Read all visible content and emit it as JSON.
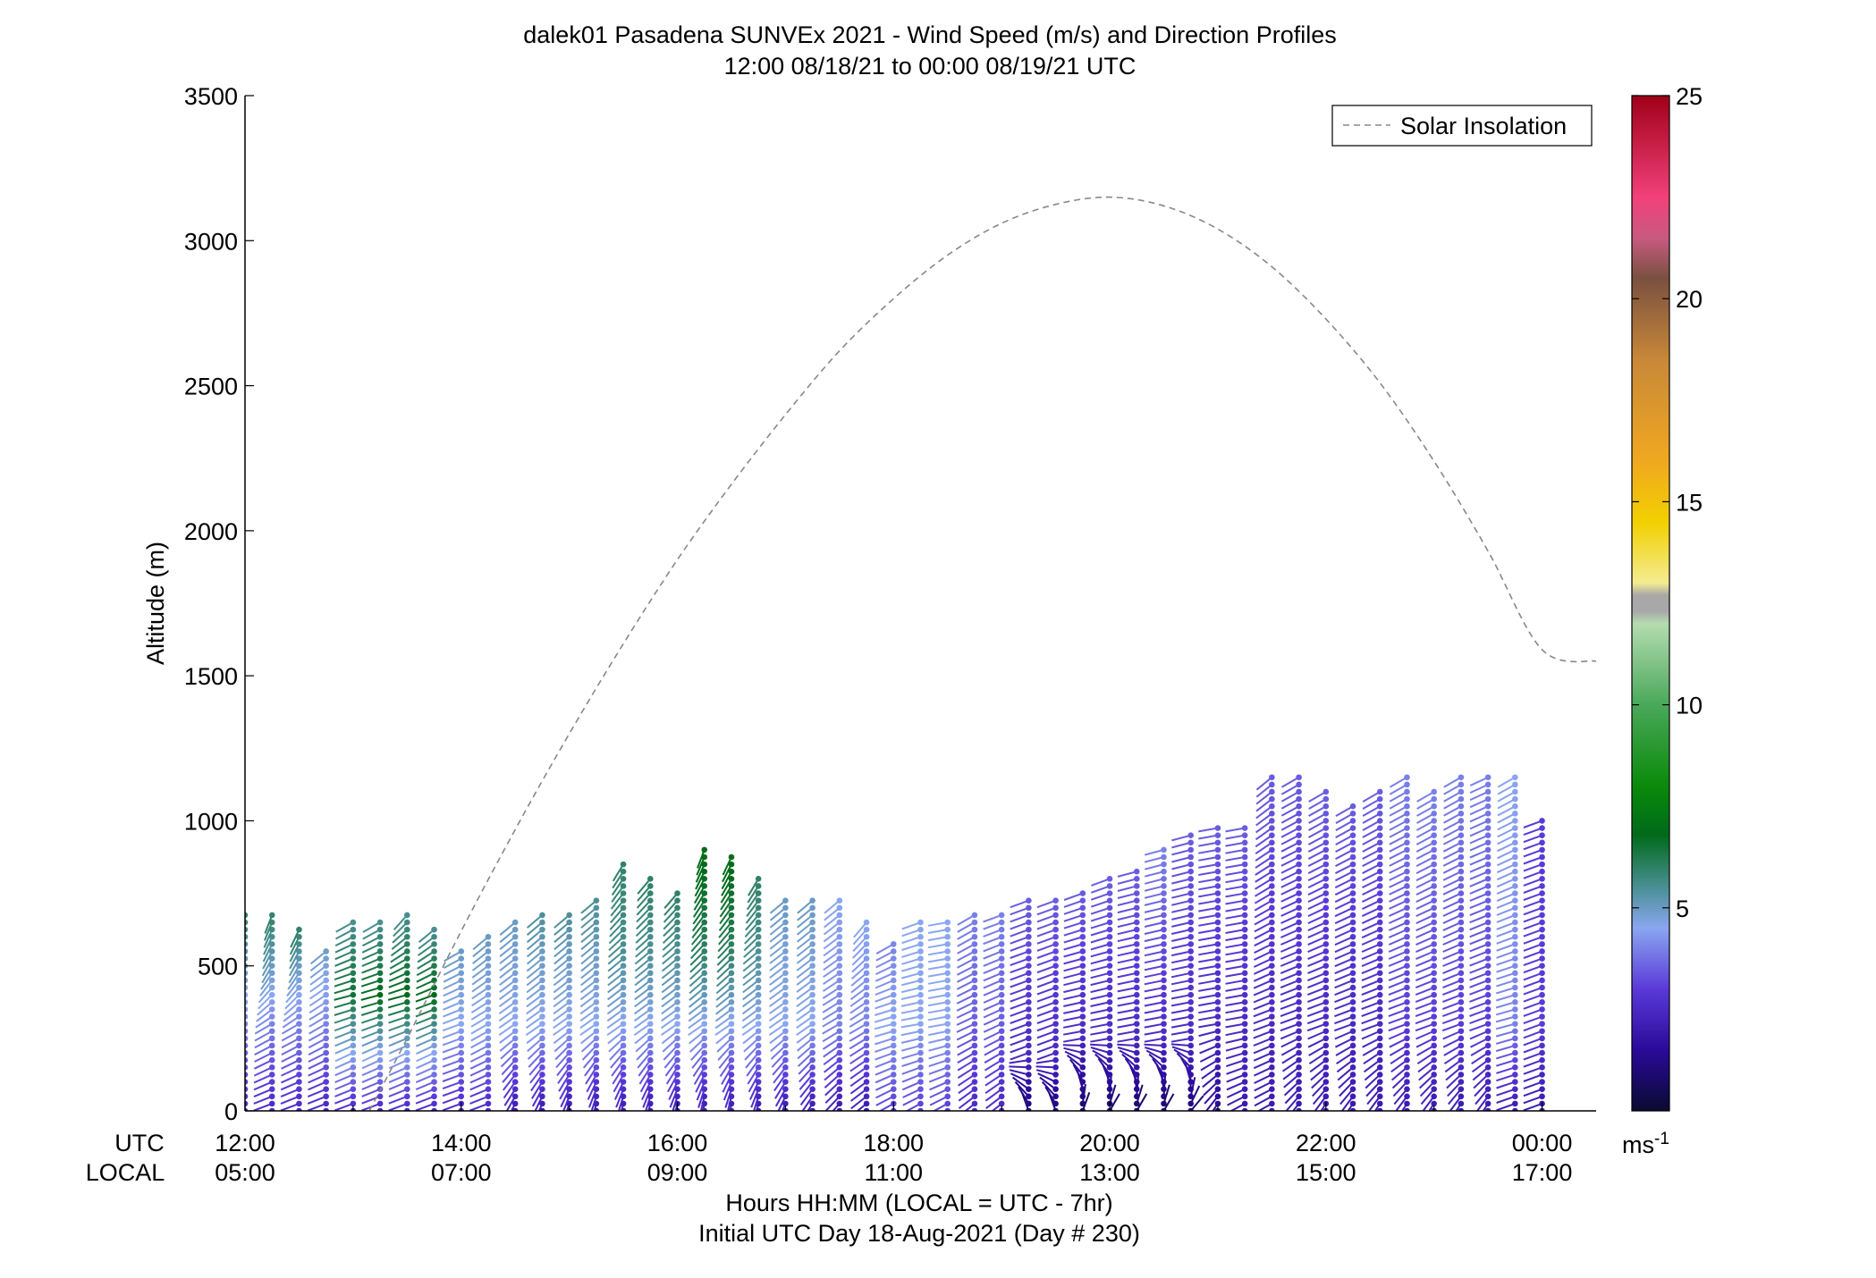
{
  "chart_data": {
    "type": "scatter",
    "title": "dalek01 Pasadena SUNVEx 2021 - Wind Speed (m/s) and Direction Profiles",
    "subtitle": "12:00 08/18/21 to 00:00 08/19/21  UTC",
    "ylabel": "Altitude (m)",
    "ylim": [
      0,
      3500
    ],
    "y_ticks": [
      "0",
      "500",
      "1000",
      "1500",
      "2000",
      "2500",
      "3000",
      "3500"
    ],
    "xlim": [
      12.0,
      24.5
    ],
    "x_row_labels": {
      "utc": "UTC",
      "local": "LOCAL"
    },
    "x_ticks_utc": [
      "12:00",
      "14:00",
      "16:00",
      "18:00",
      "20:00",
      "22:00",
      "00:00"
    ],
    "x_ticks_local": [
      "05:00",
      "07:00",
      "09:00",
      "11:00",
      "13:00",
      "15:00",
      "17:00"
    ],
    "xlabel_line1": "Hours HH:MM  (LOCAL = UTC - 7hr)",
    "xlabel_line2": "Initial UTC Day 18-Aug-2021 (Day # 230)",
    "legend": {
      "label": "Solar Insolation",
      "placement": "top-right",
      "line_style": "dashed",
      "color": "#888888"
    },
    "solar_insolation": {
      "time_utc": [
        13.15,
        13.5,
        14.0,
        14.5,
        15.0,
        15.5,
        16.0,
        16.5,
        17.0,
        17.5,
        18.0,
        18.5,
        19.0,
        19.5,
        20.0,
        20.5,
        21.0,
        21.5,
        22.0,
        22.5,
        23.0,
        23.5,
        24.0,
        24.5
      ],
      "altitude_m": [
        0,
        250,
        620,
        970,
        1300,
        1610,
        1900,
        2160,
        2400,
        2620,
        2800,
        2950,
        3060,
        3125,
        3150,
        3120,
        3040,
        2910,
        2730,
        2510,
        2240,
        1930,
        1590,
        1550
      ]
    },
    "colorbar": {
      "unit_label": "ms",
      "unit_exponent": "-1",
      "min": 0,
      "max": 25,
      "tick_labels": [
        "5",
        "10",
        "15",
        "20",
        "25"
      ],
      "tick_values": [
        5,
        10,
        15,
        20,
        25
      ],
      "color_stops": [
        {
          "v": 0,
          "c": "#0a0a30"
        },
        {
          "v": 1.5,
          "c": "#2a0a9a"
        },
        {
          "v": 3,
          "c": "#5a3ad8"
        },
        {
          "v": 4.5,
          "c": "#8aa6f0"
        },
        {
          "v": 5.5,
          "c": "#4a8f94"
        },
        {
          "v": 6.8,
          "c": "#006a1a"
        },
        {
          "v": 8,
          "c": "#0a8a0a"
        },
        {
          "v": 10,
          "c": "#4aa85a"
        },
        {
          "v": 12,
          "c": "#b4dcb0"
        },
        {
          "v": 12.3,
          "c": "#a8a8a8"
        },
        {
          "v": 12.7,
          "c": "#a8a8a8"
        },
        {
          "v": 13,
          "c": "#f4ec90"
        },
        {
          "v": 14.5,
          "c": "#f2d000"
        },
        {
          "v": 16,
          "c": "#f0a820"
        },
        {
          "v": 18.5,
          "c": "#c88838"
        },
        {
          "v": 20.5,
          "c": "#7a5040"
        },
        {
          "v": 21.5,
          "c": "#c85a80"
        },
        {
          "v": 22.5,
          "c": "#f2407a"
        },
        {
          "v": 25,
          "c": "#a00018"
        }
      ]
    },
    "profiles": [
      {
        "t": 12.0,
        "top": 690,
        "segs": [
          [
            0,
            2.5,
            160
          ],
          [
            300,
            4.0,
            150
          ],
          [
            500,
            5.0,
            120
          ],
          [
            690,
            6.0,
            110
          ]
        ]
      },
      {
        "t": 12.25,
        "top": 690,
        "segs": [
          [
            0,
            2.5,
            160
          ],
          [
            300,
            4.0,
            150
          ],
          [
            500,
            5.0,
            120
          ],
          [
            690,
            6.0,
            110
          ]
        ]
      },
      {
        "t": 12.5,
        "top": 630,
        "segs": [
          [
            0,
            2.5,
            160
          ],
          [
            300,
            4.0,
            150
          ],
          [
            500,
            5.0,
            120
          ],
          [
            630,
            6.0,
            115
          ]
        ]
      },
      {
        "t": 12.75,
        "top": 570,
        "segs": [
          [
            0,
            2.5,
            160
          ],
          [
            300,
            4.0,
            150
          ],
          [
            570,
            5.0,
            140
          ]
        ]
      },
      {
        "t": 13.0,
        "top": 660,
        "segs": [
          [
            0,
            2.5,
            160
          ],
          [
            200,
            4.5,
            155
          ],
          [
            400,
            6.5,
            165
          ],
          [
            660,
            5.5,
            150
          ]
        ]
      },
      {
        "t": 13.25,
        "top": 650,
        "segs": [
          [
            0,
            2.5,
            160
          ],
          [
            200,
            4.5,
            155
          ],
          [
            400,
            6.8,
            165
          ],
          [
            650,
            5.5,
            150
          ]
        ]
      },
      {
        "t": 13.5,
        "top": 690,
        "segs": [
          [
            0,
            2.5,
            160
          ],
          [
            200,
            4.5,
            155
          ],
          [
            400,
            6.8,
            165
          ],
          [
            690,
            5.5,
            130
          ]
        ]
      },
      {
        "t": 13.75,
        "top": 630,
        "segs": [
          [
            0,
            2.5,
            160
          ],
          [
            200,
            4.5,
            155
          ],
          [
            400,
            6.8,
            160
          ],
          [
            630,
            5.5,
            140
          ]
        ]
      },
      {
        "t": 14.0,
        "top": 560,
        "segs": [
          [
            0,
            2.5,
            160
          ],
          [
            300,
            4.5,
            160
          ],
          [
            560,
            5.0,
            150
          ]
        ]
      },
      {
        "t": 14.25,
        "top": 600,
        "segs": [
          [
            0,
            2.5,
            160
          ],
          [
            300,
            4.5,
            150
          ],
          [
            600,
            5.0,
            140
          ]
        ]
      },
      {
        "t": 14.5,
        "top": 650,
        "segs": [
          [
            0,
            2.0,
            115
          ],
          [
            300,
            4.5,
            145
          ],
          [
            650,
            5.0,
            140
          ]
        ]
      },
      {
        "t": 14.75,
        "top": 690,
        "segs": [
          [
            0,
            2.0,
            110
          ],
          [
            300,
            4.5,
            145
          ],
          [
            550,
            5.0,
            140
          ],
          [
            690,
            5.5,
            140
          ]
        ]
      },
      {
        "t": 15.0,
        "top": 690,
        "segs": [
          [
            0,
            2.0,
            105
          ],
          [
            300,
            4.5,
            145
          ],
          [
            550,
            5.0,
            140
          ],
          [
            690,
            5.5,
            140
          ]
        ]
      },
      {
        "t": 15.25,
        "top": 730,
        "segs": [
          [
            0,
            2.0,
            100
          ],
          [
            300,
            4.5,
            145
          ],
          [
            550,
            5.0,
            140
          ],
          [
            730,
            5.5,
            140
          ]
        ]
      },
      {
        "t": 15.5,
        "top": 870,
        "segs": [
          [
            0,
            2.0,
            100
          ],
          [
            300,
            4.5,
            145
          ],
          [
            550,
            5.5,
            140
          ],
          [
            870,
            6.0,
            120
          ]
        ]
      },
      {
        "t": 15.75,
        "top": 800,
        "segs": [
          [
            0,
            2.0,
            100
          ],
          [
            300,
            4.5,
            145
          ],
          [
            550,
            5.5,
            140
          ],
          [
            800,
            6.0,
            130
          ]
        ]
      },
      {
        "t": 16.0,
        "top": 760,
        "segs": [
          [
            0,
            2.0,
            100
          ],
          [
            300,
            4.5,
            145
          ],
          [
            550,
            5.5,
            140
          ],
          [
            760,
            6.0,
            130
          ]
        ]
      },
      {
        "t": 16.25,
        "top": 910,
        "segs": [
          [
            0,
            2.0,
            95
          ],
          [
            300,
            4.5,
            145
          ],
          [
            550,
            6.0,
            135
          ],
          [
            910,
            7.0,
            110
          ]
        ]
      },
      {
        "t": 16.5,
        "top": 880,
        "segs": [
          [
            0,
            2.0,
            95
          ],
          [
            300,
            4.5,
            145
          ],
          [
            550,
            6.0,
            135
          ],
          [
            880,
            7.0,
            115
          ]
        ]
      },
      {
        "t": 16.75,
        "top": 810,
        "segs": [
          [
            0,
            2.0,
            100
          ],
          [
            300,
            4.5,
            145
          ],
          [
            550,
            5.5,
            140
          ],
          [
            810,
            6.0,
            120
          ]
        ]
      },
      {
        "t": 17.0,
        "top": 730,
        "segs": [
          [
            0,
            2.0,
            110
          ],
          [
            300,
            4.5,
            145
          ],
          [
            730,
            5.0,
            140
          ]
        ]
      },
      {
        "t": 17.25,
        "top": 730,
        "segs": [
          [
            0,
            2.0,
            120
          ],
          [
            300,
            4.5,
            145
          ],
          [
            730,
            5.0,
            140
          ]
        ]
      },
      {
        "t": 17.5,
        "top": 730,
        "segs": [
          [
            0,
            2.0,
            130
          ],
          [
            300,
            4.0,
            150
          ],
          [
            730,
            4.5,
            140
          ]
        ]
      },
      {
        "t": 17.75,
        "top": 650,
        "segs": [
          [
            0,
            2.0,
            140
          ],
          [
            300,
            4.0,
            150
          ],
          [
            650,
            4.5,
            130
          ]
        ]
      },
      {
        "t": 18.0,
        "top": 590,
        "segs": [
          [
            0,
            3.0,
            150
          ],
          [
            300,
            4.5,
            165
          ],
          [
            590,
            4.0,
            150
          ]
        ]
      },
      {
        "t": 18.25,
        "top": 660,
        "segs": [
          [
            0,
            3.0,
            150
          ],
          [
            300,
            4.5,
            170
          ],
          [
            660,
            4.5,
            160
          ]
        ]
      },
      {
        "t": 18.5,
        "top": 660,
        "segs": [
          [
            0,
            3.0,
            150
          ],
          [
            300,
            4.5,
            170
          ],
          [
            660,
            4.5,
            170
          ]
        ]
      },
      {
        "t": 18.75,
        "top": 690,
        "segs": [
          [
            0,
            2.5,
            140
          ],
          [
            300,
            3.5,
            155
          ],
          [
            690,
            4.0,
            150
          ]
        ]
      },
      {
        "t": 19.0,
        "top": 690,
        "segs": [
          [
            0,
            2.5,
            140
          ],
          [
            300,
            3.5,
            155
          ],
          [
            690,
            4.0,
            160
          ]
        ]
      },
      {
        "t": 19.25,
        "top": 730,
        "segs": [
          [
            0,
            1.0,
            250
          ],
          [
            200,
            2.5,
            160
          ],
          [
            730,
            3.5,
            160
          ]
        ]
      },
      {
        "t": 19.5,
        "top": 730,
        "segs": [
          [
            0,
            1.0,
            250
          ],
          [
            200,
            2.5,
            160
          ],
          [
            730,
            3.5,
            160
          ]
        ]
      },
      {
        "t": 19.75,
        "top": 770,
        "segs": [
          [
            0,
            0.8,
            290
          ],
          [
            250,
            2.5,
            170
          ],
          [
            770,
            3.5,
            160
          ]
        ]
      },
      {
        "t": 20.0,
        "top": 800,
        "segs": [
          [
            0,
            0.8,
            300
          ],
          [
            250,
            2.5,
            170
          ],
          [
            800,
            3.5,
            160
          ]
        ]
      },
      {
        "t": 20.25,
        "top": 830,
        "segs": [
          [
            0,
            0.8,
            300
          ],
          [
            250,
            2.5,
            170
          ],
          [
            830,
            3.5,
            165
          ]
        ]
      },
      {
        "t": 20.5,
        "top": 900,
        "segs": [
          [
            0,
            0.8,
            300
          ],
          [
            250,
            2.5,
            170
          ],
          [
            900,
            4.0,
            165
          ]
        ]
      },
      {
        "t": 20.75,
        "top": 950,
        "segs": [
          [
            0,
            1.0,
            310
          ],
          [
            250,
            2.5,
            170
          ],
          [
            950,
            3.5,
            165
          ]
        ]
      },
      {
        "t": 21.0,
        "top": 980,
        "segs": [
          [
            0,
            1.5,
            120
          ],
          [
            300,
            2.5,
            170
          ],
          [
            980,
            3.5,
            170
          ]
        ]
      },
      {
        "t": 21.25,
        "top": 980,
        "segs": [
          [
            0,
            2.0,
            150
          ],
          [
            300,
            2.5,
            170
          ],
          [
            980,
            3.5,
            170
          ]
        ]
      },
      {
        "t": 21.5,
        "top": 1170,
        "segs": [
          [
            0,
            2.0,
            150
          ],
          [
            300,
            2.5,
            160
          ],
          [
            1170,
            3.5,
            140
          ]
        ]
      },
      {
        "t": 21.75,
        "top": 1170,
        "segs": [
          [
            0,
            2.0,
            125
          ],
          [
            300,
            2.5,
            160
          ],
          [
            1170,
            3.5,
            150
          ]
        ]
      },
      {
        "t": 22.0,
        "top": 1100,
        "segs": [
          [
            0,
            2.0,
            120
          ],
          [
            300,
            2.5,
            160
          ],
          [
            1100,
            3.5,
            150
          ]
        ]
      },
      {
        "t": 22.25,
        "top": 1070,
        "segs": [
          [
            0,
            2.0,
            120
          ],
          [
            300,
            2.5,
            160
          ],
          [
            1070,
            3.5,
            150
          ]
        ]
      },
      {
        "t": 22.5,
        "top": 1100,
        "segs": [
          [
            0,
            2.0,
            120
          ],
          [
            300,
            2.5,
            160
          ],
          [
            1100,
            3.5,
            150
          ]
        ]
      },
      {
        "t": 22.75,
        "top": 1170,
        "segs": [
          [
            0,
            2.0,
            120
          ],
          [
            300,
            3.0,
            160
          ],
          [
            1170,
            4.0,
            150
          ]
        ]
      },
      {
        "t": 23.0,
        "top": 1100,
        "segs": [
          [
            0,
            2.0,
            120
          ],
          [
            300,
            3.0,
            160
          ],
          [
            1100,
            4.0,
            150
          ]
        ]
      },
      {
        "t": 23.25,
        "top": 1170,
        "segs": [
          [
            0,
            2.0,
            120
          ],
          [
            300,
            3.0,
            160
          ],
          [
            1170,
            4.0,
            150
          ]
        ]
      },
      {
        "t": 23.5,
        "top": 1170,
        "segs": [
          [
            0,
            2.0,
            120
          ],
          [
            300,
            3.0,
            160
          ],
          [
            1170,
            4.0,
            155
          ]
        ]
      },
      {
        "t": 23.75,
        "top": 1170,
        "segs": [
          [
            0,
            2.0,
            160
          ],
          [
            300,
            4.0,
            165
          ],
          [
            1170,
            4.5,
            150
          ]
        ]
      },
      {
        "t": 24.0,
        "top": 1010,
        "segs": [
          [
            0,
            2.0,
            160
          ],
          [
            300,
            3.0,
            160
          ],
          [
            1010,
            3.0,
            160
          ]
        ]
      }
    ]
  }
}
